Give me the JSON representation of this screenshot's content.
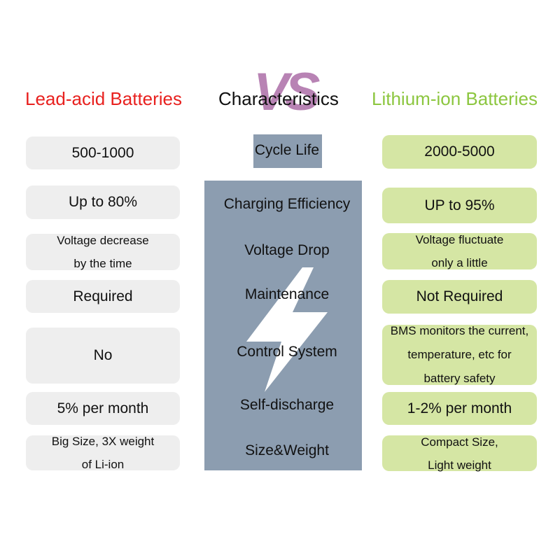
{
  "header": {
    "left": "Lead-acid Batteries",
    "vs": "VS",
    "middle": "Characteristics",
    "right": "Lithium-ion Batteries"
  },
  "rows": [
    {
      "lead": "500-1000",
      "characteristic": "Cycle Life",
      "lithium": "2000-5000"
    },
    {
      "lead": "Up to 80%",
      "characteristic": "Charging Efficiency",
      "lithium": "UP to 95%"
    },
    {
      "lead": "Voltage decrease\nby the time",
      "characteristic": "Voltage Drop",
      "lithium": "Voltage fluctuate\nonly a little"
    },
    {
      "lead": "Required",
      "characteristic": "Maintenance",
      "lithium": "Not Required"
    },
    {
      "lead": "No",
      "characteristic": "Control System",
      "lithium": "BMS monitors the current,\ntemperature, etc for\nbattery safety"
    },
    {
      "lead": "5% per month",
      "characteristic": "Self-discharge",
      "lithium": "1-2% per month"
    },
    {
      "lead": "Big Size, 3X weight\nof Li-ion",
      "characteristic": "Size&Weight",
      "lithium": "Compact Size,\nLight weight"
    }
  ]
}
